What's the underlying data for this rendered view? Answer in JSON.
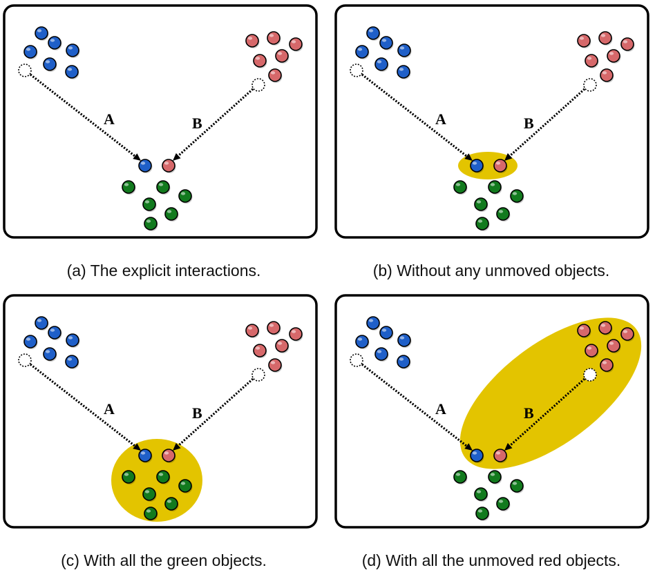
{
  "colors": {
    "blue": "#1f5fc8",
    "red": "#d6686a",
    "green": "#127a1e",
    "highlight": "#e3c400",
    "frame": "#000000"
  },
  "panels": [
    {
      "id": "a",
      "caption": "(a) The explicit interactions.",
      "label_a": "A",
      "label_b": "B",
      "highlight": "none"
    },
    {
      "id": "b",
      "caption": "(b) Without any unmoved objects.",
      "label_a": "A",
      "label_b": "B",
      "highlight": "pair"
    },
    {
      "id": "c",
      "caption": "(c) With all the green objects.",
      "label_a": "A",
      "label_b": "B",
      "highlight": "green-group"
    },
    {
      "id": "d",
      "caption": "(d) With all the unmoved red objects.",
      "label_a": "A",
      "label_b": "B",
      "highlight": "red-group"
    }
  ]
}
